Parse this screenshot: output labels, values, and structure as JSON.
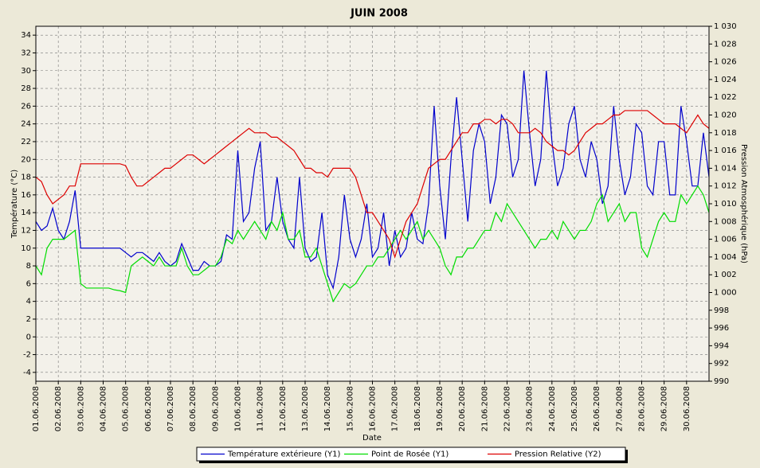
{
  "chart_data": {
    "type": "line",
    "title": "JUIN  2008",
    "xlabel": "Date",
    "ylabel": "Température (°C)",
    "y2label": "Pression Atmosphérique (hPa)",
    "x": [
      1,
      1.25,
      1.5,
      1.75,
      2,
      2.25,
      2.5,
      2.75,
      3,
      3.25,
      3.5,
      3.75,
      4,
      4.25,
      4.5,
      4.75,
      5,
      5.25,
      5.5,
      5.75,
      6,
      6.25,
      6.5,
      6.75,
      7,
      7.25,
      7.5,
      7.75,
      8,
      8.25,
      8.5,
      8.75,
      9,
      9.25,
      9.5,
      9.75,
      10,
      10.25,
      10.5,
      10.75,
      11,
      11.25,
      11.5,
      11.75,
      12,
      12.25,
      12.5,
      12.75,
      13,
      13.25,
      13.5,
      13.75,
      14,
      14.25,
      14.5,
      14.75,
      15,
      15.25,
      15.5,
      15.75,
      16,
      16.25,
      16.5,
      16.75,
      17,
      17.25,
      17.5,
      17.75,
      18,
      18.25,
      18.5,
      18.75,
      19,
      19.25,
      19.5,
      19.75,
      20,
      20.25,
      20.5,
      20.75,
      21,
      21.25,
      21.5,
      21.75,
      22,
      22.25,
      22.5,
      22.75,
      23,
      23.25,
      23.5,
      23.75,
      24,
      24.25,
      24.5,
      24.75,
      25,
      25.25,
      25.5,
      25.75,
      26,
      26.25,
      26.5,
      26.75,
      27,
      27.25,
      27.5,
      27.75,
      28,
      28.25,
      28.5,
      28.75,
      29,
      29.25,
      29.5,
      29.75,
      30,
      30.25,
      30.5,
      30.75,
      31
    ],
    "xlim": [
      1,
      31
    ],
    "xticks": [
      {
        "value": 1,
        "label": "01.06.2008"
      },
      {
        "value": 2,
        "label": "02.06.2008"
      },
      {
        "value": 3,
        "label": "03.06.2008"
      },
      {
        "value": 4,
        "label": "04.06.2008"
      },
      {
        "value": 5,
        "label": "05.06.2008"
      },
      {
        "value": 6,
        "label": "06.06.2008"
      },
      {
        "value": 7,
        "label": "07.06.2008"
      },
      {
        "value": 8,
        "label": "08.06.2008"
      },
      {
        "value": 9,
        "label": "09.06.2008"
      },
      {
        "value": 10,
        "label": "10.06.2008"
      },
      {
        "value": 11,
        "label": "11.06.2008"
      },
      {
        "value": 12,
        "label": "12.06.2008"
      },
      {
        "value": 13,
        "label": "13.06.2008"
      },
      {
        "value": 14,
        "label": "14.06.2008"
      },
      {
        "value": 15,
        "label": "15.06.2008"
      },
      {
        "value": 16,
        "label": "16.06.2008"
      },
      {
        "value": 17,
        "label": "17.06.2008"
      },
      {
        "value": 18,
        "label": "18.06.2008"
      },
      {
        "value": 19,
        "label": "19.06.2008"
      },
      {
        "value": 20,
        "label": "20.06.2008"
      },
      {
        "value": 21,
        "label": "21.06.2008"
      },
      {
        "value": 22,
        "label": "22.06.2008"
      },
      {
        "value": 23,
        "label": "23.06.2008"
      },
      {
        "value": 24,
        "label": "24.06.2008"
      },
      {
        "value": 25,
        "label": "25.06.2008"
      },
      {
        "value": 26,
        "label": "26.06.2008"
      },
      {
        "value": 27,
        "label": "27.06.2008"
      },
      {
        "value": 28,
        "label": "28.06.2008"
      },
      {
        "value": 29,
        "label": "29.06.2008"
      },
      {
        "value": 30,
        "label": "30.06.2008"
      }
    ],
    "ylim": [
      -5,
      35
    ],
    "yticks": [
      -4,
      -2,
      0,
      2,
      4,
      6,
      8,
      10,
      12,
      14,
      16,
      18,
      20,
      22,
      24,
      26,
      28,
      30,
      32,
      34
    ],
    "y2lim": [
      990,
      1030
    ],
    "y2ticks": [
      990,
      992,
      994,
      996,
      998,
      {
        "value": 1000,
        "label": "1 000"
      },
      {
        "value": 1002,
        "label": "1 002"
      },
      {
        "value": 1004,
        "label": "1 004"
      },
      {
        "value": 1006,
        "label": "1 006"
      },
      {
        "value": 1008,
        "label": "1 008"
      },
      {
        "value": 1010,
        "label": "1 010"
      },
      {
        "value": 1012,
        "label": "1 012"
      },
      {
        "value": 1014,
        "label": "1 014"
      },
      {
        "value": 1016,
        "label": "1 016"
      },
      {
        "value": 1018,
        "label": "1 018"
      },
      {
        "value": 1020,
        "label": "1 020"
      },
      {
        "value": 1022,
        "label": "1 022"
      },
      {
        "value": 1024,
        "label": "1 024"
      },
      {
        "value": 1026,
        "label": "1 026"
      },
      {
        "value": 1028,
        "label": "1 028"
      },
      {
        "value": 1030,
        "label": "1 030"
      }
    ],
    "grid": true,
    "series": [
      {
        "name": "Température extérieure (Y1)",
        "color": "#0000cc",
        "axis": "y",
        "values": [
          13,
          12,
          12.5,
          14.5,
          12,
          11,
          13,
          16.5,
          10,
          10,
          10,
          10,
          10,
          10,
          10,
          10,
          9.5,
          9,
          9.5,
          9.5,
          9,
          8.5,
          9.5,
          8.5,
          8,
          8.5,
          10.5,
          9,
          7.5,
          7.5,
          8.5,
          8,
          8,
          8.5,
          11.5,
          11,
          21,
          13,
          14,
          19,
          22,
          12,
          13,
          18,
          13,
          11,
          10,
          18,
          10,
          8.5,
          9,
          14,
          7,
          5.5,
          9,
          16,
          11,
          9,
          11,
          15,
          9,
          10,
          14,
          8,
          12,
          9,
          10,
          14,
          11,
          10.5,
          15,
          26,
          17,
          11,
          20,
          27,
          20,
          13,
          21,
          24,
          22,
          15,
          18,
          25,
          24,
          18,
          20,
          30,
          23,
          17,
          20,
          30,
          22,
          17,
          19,
          24,
          26,
          20,
          18,
          22,
          20,
          15,
          17,
          26,
          20,
          16,
          18,
          24,
          23,
          17,
          16,
          22,
          22,
          16,
          16,
          26,
          22,
          17,
          17,
          23,
          18
        ]
      },
      {
        "name": "Point de Rosée (Y1)",
        "color": "#00dd00",
        "axis": "y",
        "values": [
          8,
          7,
          10,
          11,
          11,
          11,
          11.5,
          12,
          6,
          5.5,
          5.5,
          5.5,
          5.5,
          5.5,
          5.3,
          5.2,
          5,
          8,
          8.5,
          9,
          8.5,
          8,
          9,
          8,
          8,
          8,
          10,
          8,
          7,
          7,
          7.5,
          8,
          8,
          9,
          11,
          10.5,
          12,
          11,
          12,
          13,
          12,
          11,
          13,
          12,
          14,
          11,
          11,
          12,
          9,
          9,
          10,
          8,
          6,
          4,
          5,
          6,
          5.5,
          6,
          7,
          8,
          8,
          9,
          9,
          10,
          11,
          12,
          11,
          12,
          13,
          11,
          12,
          11,
          10,
          8,
          7,
          9,
          9,
          10,
          10,
          11,
          12,
          12,
          14,
          13,
          15,
          14,
          13,
          12,
          11,
          10,
          11,
          11,
          12,
          11,
          13,
          12,
          11,
          12,
          12,
          13,
          15,
          16,
          13,
          14,
          15,
          13,
          14,
          14,
          10,
          9,
          11,
          13,
          14,
          13,
          13,
          16,
          15,
          16,
          17,
          16,
          14
        ]
      },
      {
        "name": "Pression Relative (Y2)",
        "color": "#dd0000",
        "axis": "y2",
        "values": [
          1013,
          1012.5,
          1011,
          1010,
          1010.5,
          1011,
          1012,
          1012,
          1014.5,
          1014.5,
          1014.5,
          1014.5,
          1014.5,
          1014.5,
          1014.5,
          1014.5,
          1014.3,
          1013,
          1012,
          1012,
          1012.5,
          1013,
          1013.5,
          1014,
          1014,
          1014.5,
          1015,
          1015.5,
          1015.5,
          1015,
          1014.5,
          1015,
          1015.5,
          1016,
          1016.5,
          1017,
          1017.5,
          1018,
          1018.5,
          1018,
          1018,
          1018,
          1017.5,
          1017.5,
          1017,
          1016.5,
          1016,
          1015,
          1014,
          1014,
          1013.5,
          1013.5,
          1013,
          1014,
          1014,
          1014,
          1014,
          1013,
          1011,
          1009,
          1009,
          1008,
          1007,
          1006,
          1004,
          1006,
          1008,
          1009,
          1010,
          1012,
          1014,
          1014.5,
          1015,
          1015,
          1016,
          1017,
          1018,
          1018,
          1019,
          1019,
          1019.5,
          1019.5,
          1019,
          1019.5,
          1019.5,
          1019,
          1018,
          1018,
          1018,
          1018.5,
          1018,
          1017,
          1016.5,
          1016,
          1016,
          1015.5,
          1016,
          1017,
          1018,
          1018.5,
          1019,
          1019,
          1019.5,
          1020,
          1020,
          1020.5,
          1020.5,
          1020.5,
          1020.5,
          1020.5,
          1020,
          1019.5,
          1019,
          1019,
          1019,
          1018.5,
          1018,
          1019,
          1020,
          1019,
          1018.5
        ]
      }
    ]
  }
}
